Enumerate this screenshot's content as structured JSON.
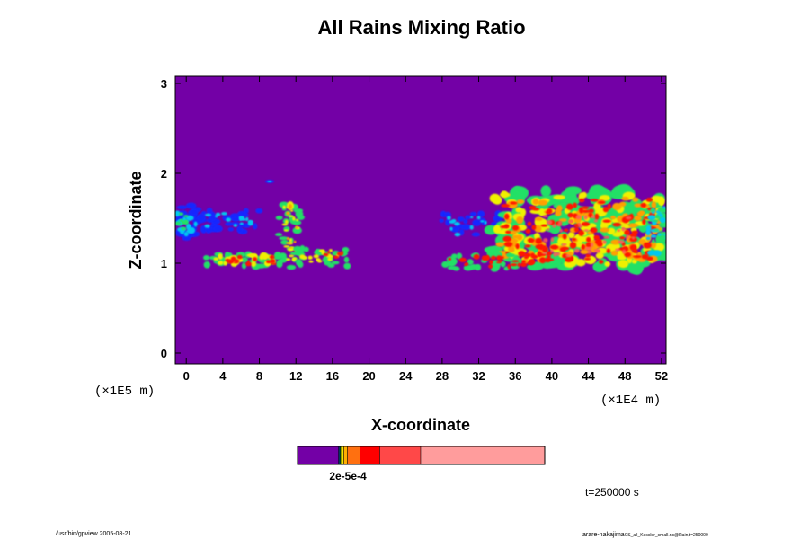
{
  "chart_data": {
    "type": "heatmap",
    "title": "All Rains Mixing Ratio",
    "xlabel": "X-coordinate",
    "ylabel": "Z-coordinate",
    "x_ticks": [
      "0",
      "4",
      "8",
      "12",
      "16",
      "20",
      "24",
      "28",
      "32",
      "36",
      "40",
      "44",
      "48",
      "52"
    ],
    "x_tick_values": [
      0,
      4,
      8,
      12,
      16,
      20,
      24,
      28,
      32,
      36,
      40,
      44,
      48,
      52
    ],
    "xlim": [
      -1.2,
      52.5
    ],
    "y_ticks": [
      "0",
      "1",
      "2",
      "3"
    ],
    "y_tick_values": [
      0,
      1,
      2,
      3
    ],
    "ylim": [
      -0.12,
      3.08
    ],
    "x_unit_label": "(×1E4 m)",
    "y_unit_label": "(×1E5 m)",
    "background_color": "#7300a6",
    "colorbar": {
      "label": "2e-5e-4",
      "segments": [
        {
          "color": "#7300a6",
          "weight": 16.5
        },
        {
          "color": "#2020ff",
          "weight": 0.3
        },
        {
          "color": "#00c8ff",
          "weight": 0.3
        },
        {
          "color": "#00ff66",
          "weight": 0.3
        },
        {
          "color": "#f2e600",
          "weight": 1.2
        },
        {
          "color": "#ffb000",
          "weight": 1.5
        },
        {
          "color": "#ff7010",
          "weight": 5.0
        },
        {
          "color": "#ff0000",
          "weight": 8.0
        },
        {
          "color": "#ff4848",
          "weight": 16.5
        },
        {
          "color": "#ff9c9c",
          "weight": 50.0
        }
      ]
    },
    "grid": false,
    "legend": "bottom"
  },
  "annotations": {
    "time": "t=250000 s",
    "footer_left": "/usr/bin/gpview 2005-08-21",
    "footer_right": "arare-nakajima",
    "footer_right_small": "CS_all_Kessler_small.nc@Rain,t=250000"
  }
}
